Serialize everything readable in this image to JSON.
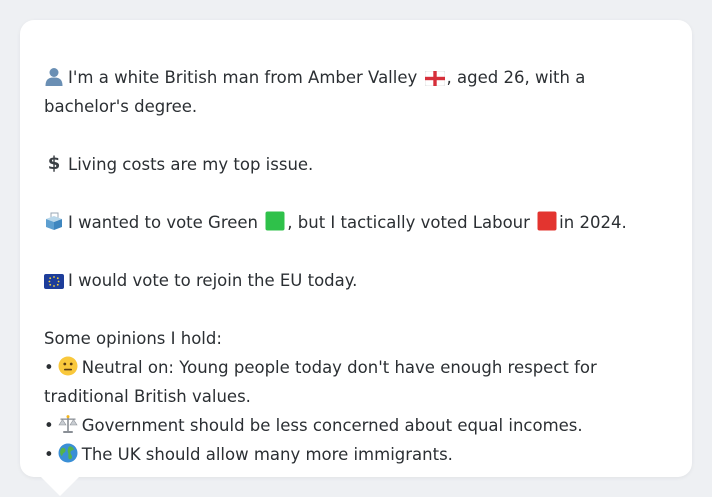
{
  "profile": {
    "identity_part1": "I'm a white British man from Amber Valley",
    "identity_part2": ", aged 26, with a bachelor's degree.",
    "issue": "Living costs are my top issue.",
    "vote_part1": "I wanted to vote Green",
    "vote_part2": ", but I tactically voted Labour",
    "vote_part3": "in 2024.",
    "eu": "I would vote to rejoin the EU today.",
    "opinions_heading": "Some opinions I hold:",
    "opinions": [
      {
        "text": "Neutral on: Young people today don't have enough respect for traditional British values.",
        "icon": "neutral-face-icon"
      },
      {
        "text": "Government should be less concerned about equal incomes.",
        "icon": "scales-icon"
      },
      {
        "text": "The UK should allow many more immigrants.",
        "icon": "globe-icon"
      }
    ]
  },
  "colors": {
    "green": "#2fc14a",
    "labour_red": "#e3342f",
    "text": "#2b2f33",
    "background": "#eef0f3",
    "card": "#ffffff"
  }
}
